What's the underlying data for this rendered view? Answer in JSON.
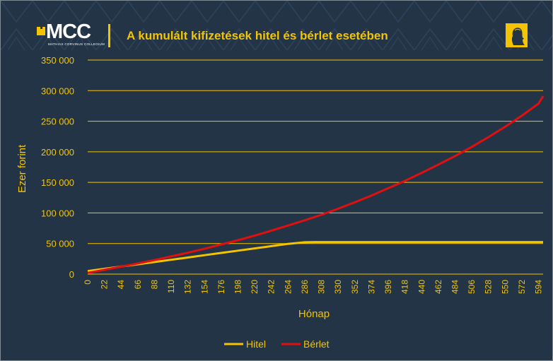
{
  "header": {
    "logo_text": "MCC",
    "logo_subtext": "MATHIAS CORVINUS COLLEGIUM",
    "title": "A kumulált kifizetések hitel és bérlet esetében"
  },
  "colors": {
    "background": "#223446",
    "accent": "#f5c400",
    "hitel": "#f5c400",
    "berlet": "#e01010"
  },
  "icons": [
    "logo-mark-icon",
    "portrait-icon"
  ],
  "chart_data": {
    "type": "line",
    "title": "A kumulált kifizetések hitel és bérlet esetében",
    "xlabel": "Hónap",
    "ylabel": "Ezer forint",
    "ylim": [
      0,
      350000
    ],
    "yticks": [
      0,
      50000,
      100000,
      150000,
      200000,
      250000,
      300000,
      350000
    ],
    "ytick_labels": [
      "0",
      "50 000",
      "100 000",
      "150 000",
      "200 000",
      "250 000",
      "300 000",
      "350 000"
    ],
    "xlim": [
      0,
      600
    ],
    "xticks": [
      0,
      22,
      44,
      66,
      88,
      110,
      132,
      154,
      176,
      198,
      220,
      242,
      264,
      286,
      308,
      330,
      352,
      374,
      396,
      418,
      440,
      462,
      484,
      506,
      528,
      550,
      572,
      594
    ],
    "grid": true,
    "legend_position": "bottom",
    "series": [
      {
        "name": "Hitel",
        "color": "#f5c400",
        "x": [
          0,
          22,
          44,
          66,
          88,
          110,
          132,
          154,
          176,
          198,
          220,
          242,
          264,
          286,
          300,
          330,
          400,
          500,
          600
        ],
        "y": [
          5000,
          8700,
          12400,
          16100,
          19800,
          23500,
          27200,
          30900,
          34600,
          38300,
          42000,
          45700,
          49400,
          52100,
          52500,
          52500,
          52500,
          52500,
          52500
        ]
      },
      {
        "name": "Bérlet",
        "color": "#e01010",
        "x": [
          0,
          22,
          44,
          66,
          88,
          110,
          132,
          154,
          176,
          198,
          220,
          242,
          264,
          286,
          308,
          330,
          352,
          374,
          396,
          418,
          440,
          462,
          484,
          506,
          528,
          550,
          572,
          594,
          600
        ],
        "y": [
          2000,
          7000,
          12100,
          17500,
          23000,
          29000,
          35000,
          41500,
          48500,
          55500,
          63000,
          71000,
          79500,
          88000,
          97000,
          107000,
          117500,
          128500,
          140500,
          152500,
          165500,
          179000,
          193000,
          208000,
          224000,
          241000,
          259000,
          279000,
          291000
        ]
      }
    ]
  }
}
